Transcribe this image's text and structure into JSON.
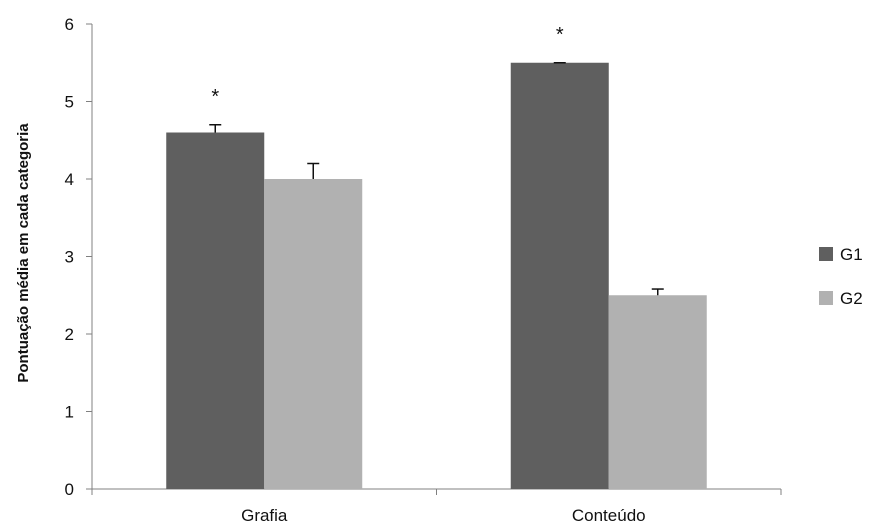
{
  "chart_data": {
    "type": "bar",
    "title": "",
    "xlabel": "",
    "ylabel": "Pontuação média em cada categoria",
    "ylim": [
      0,
      6
    ],
    "yticks": [
      0,
      1,
      2,
      3,
      4,
      5,
      6
    ],
    "grid": false,
    "legend_position": "right",
    "categories": [
      "Grafia",
      "Conteúdo"
    ],
    "series": [
      {
        "name": "G1",
        "color": "#5f5f5f",
        "values": [
          4.6,
          5.5
        ],
        "error": [
          0.1,
          0.0
        ]
      },
      {
        "name": "G2",
        "color": "#b1b1b1",
        "values": [
          4.0,
          2.5
        ],
        "error": [
          0.2,
          0.08
        ]
      }
    ],
    "annotations": [
      {
        "text": "*",
        "category": "Grafia",
        "series": "G1"
      },
      {
        "text": "*",
        "category": "Conteúdo",
        "series": "G1"
      }
    ]
  }
}
